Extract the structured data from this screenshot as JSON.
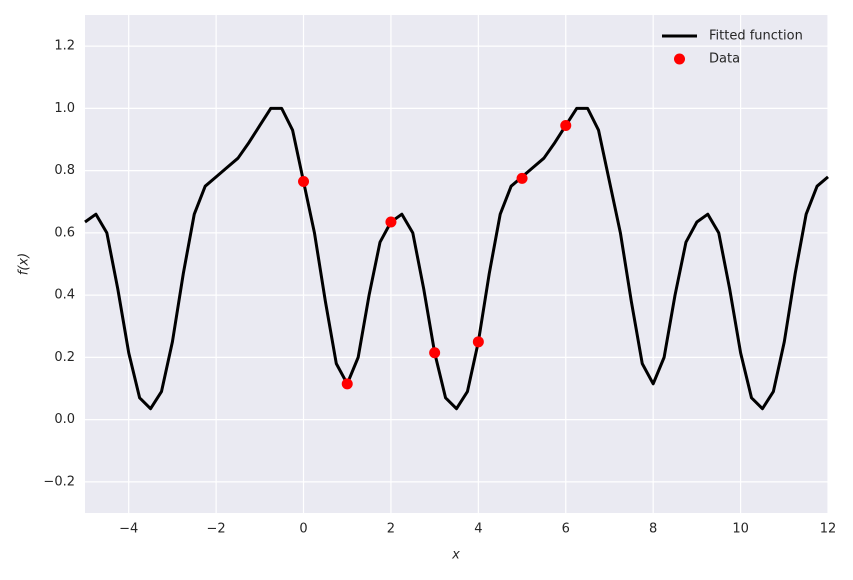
{
  "chart_data": {
    "type": "line",
    "xlabel": "x",
    "ylabel": "f(x)",
    "xlim": [
      -5,
      12
    ],
    "ylim": [
      -0.3,
      1.3
    ],
    "xticks": [
      {
        "value": -4,
        "label": "−4"
      },
      {
        "value": -2,
        "label": "−2"
      },
      0,
      2,
      4,
      6,
      8,
      10,
      12
    ],
    "yticks": [
      {
        "value": -0.2,
        "label": "−0.2"
      },
      {
        "value": 0,
        "label": "0.0"
      },
      0.2,
      0.4,
      0.6,
      0.8,
      {
        "value": 1,
        "label": "1.0"
      },
      1.2
    ],
    "grid": true,
    "legend": "upper right",
    "series": [
      {
        "name": "Fitted function",
        "type": "line",
        "color": "#000000",
        "x": [
          -5,
          -4.75,
          -4.5,
          -4.25,
          -4,
          -3.75,
          -3.5,
          -3.25,
          -3,
          -2.75,
          -2.5,
          -2.25,
          -2,
          -1.75,
          -1.5,
          -1.25,
          -1,
          -0.75,
          -0.5,
          -0.25,
          0,
          0.25,
          0.5,
          0.75,
          1,
          1.25,
          1.5,
          1.75,
          2,
          2.25,
          2.5,
          2.75,
          3,
          3.25,
          3.5,
          3.75,
          4,
          4.25,
          4.5,
          4.75,
          5,
          5.25,
          5.5,
          5.75,
          6,
          6.25,
          6.5,
          6.75,
          7,
          7.25,
          7.5,
          7.75,
          8,
          8.25,
          8.5,
          8.75,
          9,
          9.25,
          9.5,
          9.75,
          10,
          10.25,
          10.5,
          10.75,
          11,
          11.25,
          11.5,
          11.75,
          12
        ],
        "values": [
          0.635,
          0.66,
          0.6,
          0.42,
          0.215,
          0.07,
          0.035,
          0.09,
          0.25,
          0.47,
          0.66,
          0.75,
          0.78,
          0.81,
          0.84,
          0.89,
          0.945,
          1.0,
          1.0,
          0.93,
          0.765,
          0.6,
          0.38,
          0.18,
          0.115,
          0.2,
          0.4,
          0.57,
          0.635,
          0.66,
          0.6,
          0.42,
          0.215,
          0.07,
          0.035,
          0.09,
          0.25,
          0.47,
          0.66,
          0.75,
          0.78,
          0.81,
          0.84,
          0.89,
          0.945,
          1.0,
          1.0,
          0.93,
          0.765,
          0.6,
          0.38,
          0.18,
          0.115,
          0.2,
          0.4,
          0.57,
          0.635,
          0.66,
          0.6,
          0.42,
          0.215,
          0.07,
          0.035,
          0.09,
          0.25,
          0.47,
          0.66,
          0.75,
          0.78
        ]
      },
      {
        "name": "Data",
        "type": "scatter",
        "color": "#ff0000",
        "x": [
          0,
          1,
          2,
          3,
          4,
          5,
          6
        ],
        "values": [
          0.765,
          0.115,
          0.635,
          0.215,
          0.25,
          0.775,
          0.945
        ]
      }
    ]
  }
}
